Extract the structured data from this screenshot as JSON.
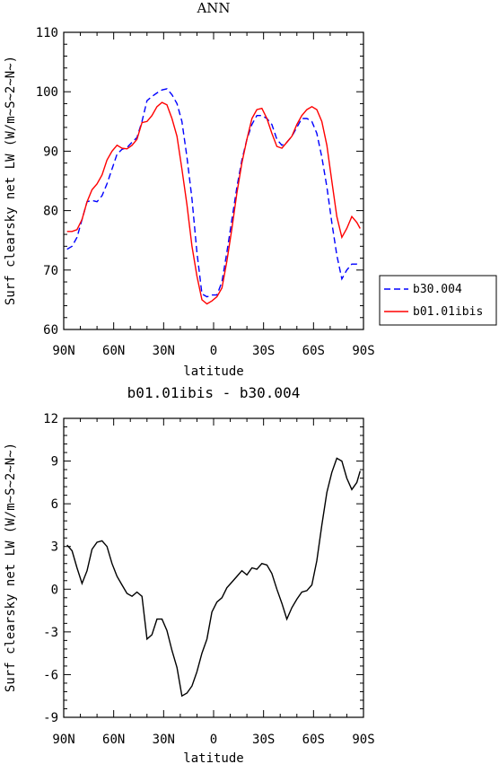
{
  "chart_data": [
    {
      "type": "line",
      "title": "ANN",
      "xlabel": "latitude",
      "ylabel": "Surf clearsky net LW (W/m~S~2~N~)",
      "xlim": [
        90,
        -90
      ],
      "ylim": [
        60,
        110
      ],
      "x_ticks": [
        90,
        60,
        30,
        0,
        -30,
        -60,
        -90
      ],
      "x_tick_labels": [
        "90N",
        "60N",
        "30N",
        "0",
        "30S",
        "60S",
        "90S"
      ],
      "y_ticks": [
        60,
        70,
        80,
        90,
        100,
        110
      ],
      "y_tick_labels": [
        "60",
        "70",
        "80",
        "90",
        "100",
        "110"
      ],
      "series": [
        {
          "name": "b30.004",
          "color": "#0000ff",
          "dash": "dashed",
          "x": [
            88,
            85,
            82,
            79,
            76,
            73,
            70,
            67,
            64,
            61,
            58,
            55,
            52,
            49,
            46,
            43,
            40,
            37,
            34,
            31,
            28,
            25,
            22,
            19,
            16,
            13,
            10,
            7,
            4,
            1,
            -2,
            -5,
            -8,
            -11,
            -14,
            -17,
            -20,
            -23,
            -26,
            -29,
            -32,
            -35,
            -38,
            -41,
            -44,
            -47,
            -50,
            -53,
            -56,
            -59,
            -62,
            -65,
            -68,
            -71,
            -74,
            -77,
            -80,
            -83,
            -86,
            -88
          ],
          "y": [
            73.5,
            74,
            75.5,
            78.5,
            81.5,
            81.7,
            81.5,
            82.5,
            84.5,
            87,
            89.5,
            90.3,
            90.6,
            91.5,
            92.3,
            95,
            98.5,
            99.2,
            99.8,
            100.3,
            100.5,
            99.5,
            98,
            95,
            89,
            82,
            73,
            66,
            65.5,
            65.8,
            65.8,
            68,
            73,
            78.5,
            84,
            88.5,
            92,
            94.5,
            96,
            96,
            95.5,
            94.5,
            92,
            91,
            91.5,
            92.5,
            94,
            95.5,
            95.5,
            95,
            93,
            89,
            84,
            78,
            72.5,
            68.5,
            70,
            71,
            71,
            70.8
          ]
        },
        {
          "name": "b01.01ibis",
          "color": "#ff0000",
          "dash": "solid",
          "x": [
            88,
            85,
            82,
            79,
            76,
            73,
            70,
            67,
            64,
            61,
            58,
            55,
            52,
            49,
            46,
            43,
            40,
            37,
            34,
            31,
            28,
            25,
            22,
            19,
            16,
            13,
            10,
            7,
            4,
            1,
            -2,
            -5,
            -8,
            -11,
            -14,
            -17,
            -20,
            -23,
            -26,
            -29,
            -32,
            -35,
            -38,
            -41,
            -44,
            -47,
            -50,
            -53,
            -56,
            -59,
            -62,
            -65,
            -68,
            -71,
            -74,
            -77,
            -80,
            -83,
            -86,
            -88
          ],
          "y": [
            76.5,
            76.5,
            76.8,
            78.5,
            81.5,
            83.5,
            84.5,
            86,
            88.5,
            90,
            91,
            90.5,
            90.4,
            91,
            92,
            94.8,
            95,
            96,
            97.5,
            98.2,
            97.8,
            95.5,
            92.5,
            87,
            81,
            74,
            69,
            65,
            64.3,
            64.8,
            65.5,
            67,
            71.5,
            77,
            83,
            88,
            92,
            95.5,
            97,
            97.2,
            95.5,
            93,
            90.8,
            90.5,
            91.5,
            92.5,
            94.5,
            96,
            97,
            97.5,
            97,
            95,
            91,
            85,
            79,
            75.5,
            77,
            79,
            78,
            77
          ]
        }
      ],
      "legend": {
        "placement": "right",
        "entries": [
          "b30.004",
          "b01.01ibis"
        ]
      },
      "grid": false
    },
    {
      "type": "line",
      "title": "b01.01ibis - b30.004",
      "xlabel": "latitude",
      "ylabel": "Surf clearsky net LW (W/m~S~2~N~)",
      "xlim": [
        90,
        -90
      ],
      "ylim": [
        -9,
        12
      ],
      "x_ticks": [
        90,
        60,
        30,
        0,
        -30,
        -60,
        -90
      ],
      "x_tick_labels": [
        "90N",
        "60N",
        "30N",
        "0",
        "30S",
        "60S",
        "90S"
      ],
      "y_ticks": [
        -9,
        -6,
        -3,
        0,
        3,
        6,
        9,
        12
      ],
      "y_tick_labels": [
        "-9",
        "-6",
        "-3",
        "0",
        "3",
        "6",
        "9",
        "12"
      ],
      "series": [
        {
          "color": "#000000",
          "dash": "solid",
          "x": [
            88,
            85,
            82,
            79,
            76,
            73,
            70,
            67,
            64,
            61,
            58,
            55,
            52,
            49,
            46,
            43,
            40,
            37,
            34,
            31,
            28,
            25,
            22,
            19,
            16,
            13,
            10,
            7,
            4,
            1,
            -2,
            -5,
            -8,
            -11,
            -14,
            -17,
            -20,
            -23,
            -26,
            -29,
            -32,
            -35,
            -38,
            -41,
            -44,
            -47,
            -50,
            -53,
            -56,
            -59,
            -62,
            -65,
            -68,
            -71,
            -74,
            -77,
            -80,
            -83,
            -86,
            -88
          ],
          "y": [
            3.1,
            2.7,
            1.5,
            0.4,
            1.3,
            2.8,
            3.3,
            3.4,
            3,
            1.8,
            0.9,
            0.3,
            -0.3,
            -0.5,
            -0.2,
            -0.5,
            -3.5,
            -3.2,
            -2.1,
            -2.1,
            -2.9,
            -4.3,
            -5.5,
            -7.5,
            -7.3,
            -6.8,
            -5.8,
            -4.5,
            -3.5,
            -1.6,
            -0.9,
            -0.6,
            0.1,
            0.5,
            0.9,
            1.3,
            1,
            1.5,
            1.4,
            1.8,
            1.7,
            1.1,
            0,
            -1,
            -2.1,
            -1.3,
            -0.7,
            -0.2,
            -0.1,
            0.3,
            2,
            4.5,
            6.8,
            8.2,
            9.2,
            9,
            7.8,
            7,
            7.5,
            8.3
          ]
        }
      ],
      "grid": false
    }
  ]
}
